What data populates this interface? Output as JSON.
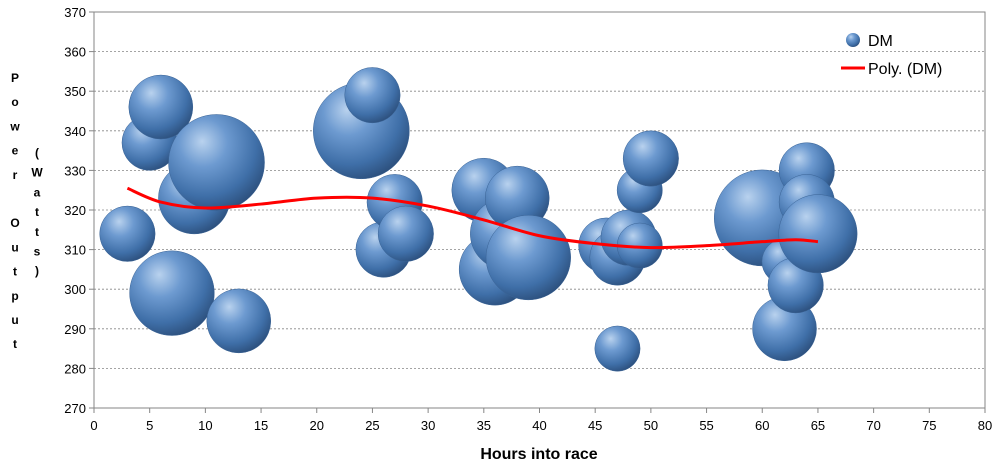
{
  "chart_data": {
    "type": "scatter",
    "subtype": "bubble",
    "xlabel": "Hours into race",
    "ylabel_main": "Power Output",
    "ylabel_unit": "(Watts)",
    "xlim": [
      0,
      80
    ],
    "ylim": [
      270,
      370
    ],
    "x_ticks": [
      "0",
      "5",
      "10",
      "15",
      "20",
      "25",
      "30",
      "35",
      "40",
      "45",
      "50",
      "55",
      "60",
      "65",
      "70",
      "75",
      "80"
    ],
    "y_ticks": [
      "270",
      "280",
      "290",
      "300",
      "310",
      "320",
      "330",
      "340",
      "350",
      "360",
      "370"
    ],
    "grid": "horizontal",
    "legend_position": "top-right",
    "series": [
      {
        "name": "DM",
        "color": "#4f81bd",
        "points": [
          {
            "x": 3,
            "y": 314,
            "size": 3
          },
          {
            "x": 5,
            "y": 337,
            "size": 3
          },
          {
            "x": 6,
            "y": 346,
            "size": 4
          },
          {
            "x": 7,
            "y": 299,
            "size": 7
          },
          {
            "x": 9,
            "y": 323,
            "size": 5
          },
          {
            "x": 11,
            "y": 332,
            "size": 9
          },
          {
            "x": 13,
            "y": 292,
            "size": 4
          },
          {
            "x": 24,
            "y": 340,
            "size": 9
          },
          {
            "x": 25,
            "y": 349,
            "size": 3
          },
          {
            "x": 26,
            "y": 310,
            "size": 3
          },
          {
            "x": 27,
            "y": 322,
            "size": 3
          },
          {
            "x": 28,
            "y": 314,
            "size": 3
          },
          {
            "x": 35,
            "y": 325,
            "size": 4
          },
          {
            "x": 36,
            "y": 305,
            "size": 5
          },
          {
            "x": 37,
            "y": 314,
            "size": 5
          },
          {
            "x": 38,
            "y": 323,
            "size": 4
          },
          {
            "x": 39,
            "y": 308,
            "size": 7
          },
          {
            "x": 46,
            "y": 311,
            "size": 3
          },
          {
            "x": 47,
            "y": 285,
            "size": 2
          },
          {
            "x": 47,
            "y": 308,
            "size": 3
          },
          {
            "x": 48,
            "y": 313,
            "size": 3
          },
          {
            "x": 49,
            "y": 325,
            "size": 2
          },
          {
            "x": 49,
            "y": 311,
            "size": 2
          },
          {
            "x": 50,
            "y": 333,
            "size": 3
          },
          {
            "x": 60,
            "y": 318,
            "size": 9
          },
          {
            "x": 62,
            "y": 290,
            "size": 4
          },
          {
            "x": 62,
            "y": 307,
            "size": 2
          },
          {
            "x": 63,
            "y": 301,
            "size": 3
          },
          {
            "x": 64,
            "y": 330,
            "size": 3
          },
          {
            "x": 64,
            "y": 322,
            "size": 3
          },
          {
            "x": 65,
            "y": 314,
            "size": 6
          }
        ]
      },
      {
        "name": "Poly. (DM)",
        "color": "#ff0000",
        "kind": "trendline",
        "points": [
          {
            "x": 3,
            "y": 325.5
          },
          {
            "x": 6,
            "y": 322.0
          },
          {
            "x": 10,
            "y": 320.5
          },
          {
            "x": 15,
            "y": 321.5
          },
          {
            "x": 20,
            "y": 323.0
          },
          {
            "x": 25,
            "y": 323.0
          },
          {
            "x": 30,
            "y": 321.0
          },
          {
            "x": 35,
            "y": 317.5
          },
          {
            "x": 40,
            "y": 313.5
          },
          {
            "x": 45,
            "y": 311.5
          },
          {
            "x": 50,
            "y": 310.5
          },
          {
            "x": 55,
            "y": 311.0
          },
          {
            "x": 60,
            "y": 312.0
          },
          {
            "x": 63,
            "y": 312.5
          },
          {
            "x": 65,
            "y": 312.0
          }
        ]
      }
    ]
  }
}
